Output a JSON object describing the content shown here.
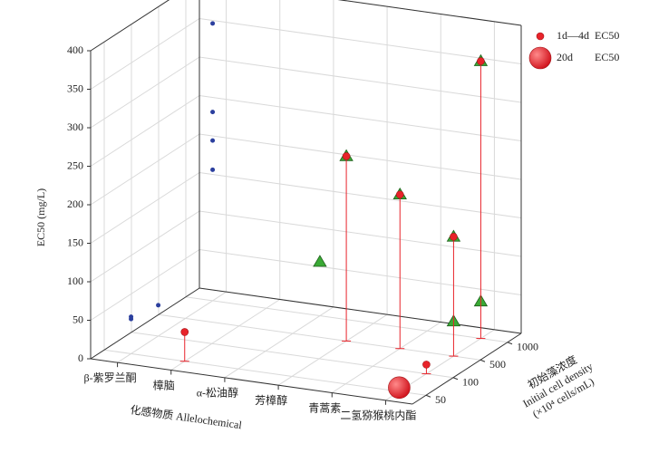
{
  "chart_data": {
    "type": "scatter3d",
    "y_label": "EC50 (mg/L)",
    "x_label": "化感物质 Allelochemical",
    "z_label": [
      "初始藻浓度",
      "Initial cell density",
      "(×10⁴ cells/mL)"
    ],
    "categories": [
      "β-紫罗兰酮",
      "樟脑",
      "α-松油醇",
      "芳樟醇",
      "青蒿素",
      "二氢猕猴桃内酯"
    ],
    "z_categories": [
      "50",
      "100",
      "500",
      "1000"
    ],
    "ylim": [
      0,
      400
    ],
    "yticks": [
      0,
      50,
      100,
      150,
      200,
      250,
      300,
      350,
      400
    ],
    "grid": true,
    "series": [
      {
        "color": "#2b3f9e",
        "marker": "dot",
        "points": [
          {
            "x": "β-紫罗兰酮",
            "z": "1000",
            "y": 360
          },
          {
            "x": "β-紫罗兰酮",
            "z": "1000",
            "y": 245
          },
          {
            "x": "β-紫罗兰酮",
            "z": "1000",
            "y": 208
          },
          {
            "x": "β-紫罗兰酮",
            "z": "1000",
            "y": 170
          },
          {
            "x": "β-紫罗兰酮",
            "z": "50",
            "y": 48
          },
          {
            "x": "β-紫罗兰酮",
            "z": "50",
            "y": 45
          },
          {
            "x": "β-紫罗兰酮",
            "z": "100",
            "y": 40
          }
        ]
      },
      {
        "color": "#3aa935",
        "marker": "triangle",
        "points": [
          {
            "x": "芳樟醇",
            "z": "500",
            "y": 240
          },
          {
            "x": "青蒿素",
            "z": "500",
            "y": 200
          },
          {
            "x": "二氢猕猴桃内酯",
            "z": "500",
            "y": 155
          },
          {
            "x": "二氢猕猴桃内酯",
            "z": "1000",
            "y": 360
          },
          {
            "x": "α-松油醇",
            "z": "1000",
            "y": 70
          },
          {
            "x": "二氢猕猴桃内酯",
            "z": "500",
            "y": 45
          },
          {
            "x": "二氢猕猴桃内酯",
            "z": "1000",
            "y": 48
          }
        ]
      },
      {
        "name": "1d—4d  EC50",
        "color": "#e8232a",
        "marker": "small-circle",
        "drop_lines": true,
        "points": [
          {
            "x": "樟脑",
            "z": "50",
            "y": 38
          },
          {
            "x": "芳樟醇",
            "z": "500",
            "y": 240
          },
          {
            "x": "青蒿素",
            "z": "500",
            "y": 200
          },
          {
            "x": "二氢猕猴桃内酯",
            "z": "500",
            "y": 155
          },
          {
            "x": "二氢猕猴桃内酯",
            "z": "1000",
            "y": 360
          },
          {
            "x": "二氢猕猴桃内酯",
            "z": "100",
            "y": 12
          }
        ]
      },
      {
        "name": "20d        EC50",
        "color": "#e8232a",
        "marker": "large-circle",
        "drop_lines": true,
        "points": [
          {
            "x": "二氢猕猴桃内酯",
            "z": "50",
            "y": 5
          }
        ]
      }
    ]
  }
}
